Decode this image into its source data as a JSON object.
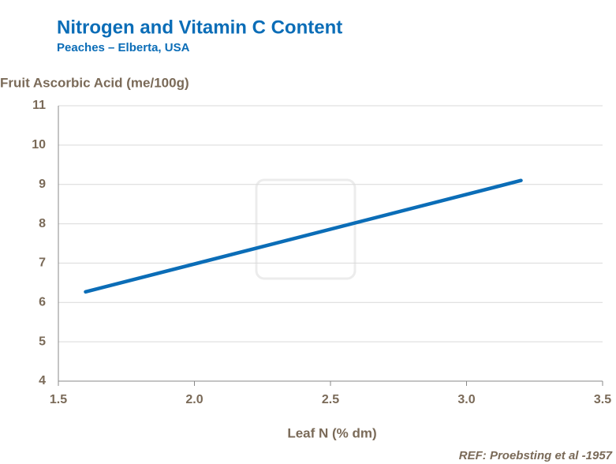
{
  "chart_data": {
    "type": "line",
    "title": "Nitrogen and Vitamin C Content",
    "subtitle": "Peaches – Elberta, USA",
    "y_label": "Fruit Ascorbic Acid (me/100g)",
    "x_label": "Leaf N (% dm)",
    "annotation": "REF: Proebsting et al -1957",
    "x": [
      1.6,
      3.2
    ],
    "series": [
      {
        "color": "#0b6db7",
        "values": [
          6.27,
          9.1
        ]
      }
    ],
    "xlim": [
      1.5,
      3.5
    ],
    "xticks": [
      1.5,
      {
        "value": 2,
        "label": "2.0"
      },
      2.5,
      {
        "value": 3,
        "label": "3.0"
      },
      3.5
    ],
    "ylim": [
      4,
      11
    ],
    "yticks": [
      4,
      5,
      6,
      7,
      8,
      9,
      10,
      11
    ],
    "grid": true
  }
}
